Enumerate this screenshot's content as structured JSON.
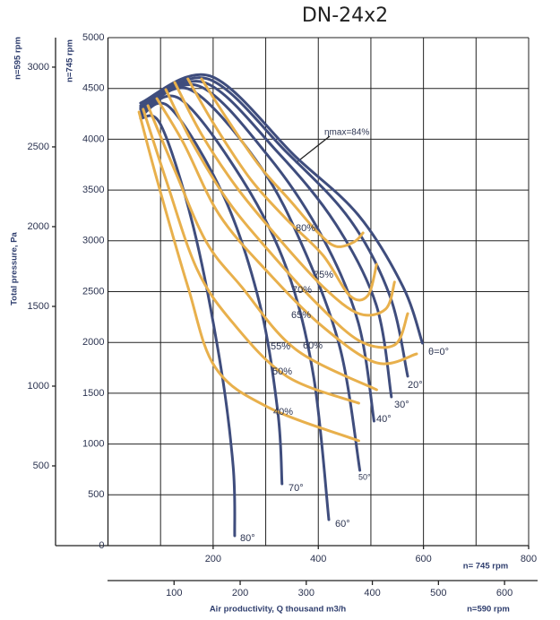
{
  "chart_data": {
    "type": "line",
    "title": "DN-24x2",
    "y_label": "Total pressure, Pa",
    "y_rpm_label": "n=745 rpm",
    "y2_rpm_label": "n=595 rpm",
    "x_label": "Air productivity, Q thousand m3/h",
    "x_rpm_label": "n= 745 rpm",
    "x2_rpm_label": "n=590 rpm",
    "annotation": "ηmax=84%",
    "xlim": [
      0,
      800
    ],
    "xticks": [
      200,
      400,
      600,
      800
    ],
    "xgrid": [
      100,
      200,
      300,
      400,
      500,
      600,
      700,
      800
    ],
    "ylim": [
      0,
      5000
    ],
    "yticks": [
      0,
      500,
      1000,
      1500,
      2000,
      2500,
      3000,
      3500,
      4000,
      4500,
      5000
    ],
    "y2lim": [
      0,
      3185
    ],
    "y2ticks": [
      500,
      1000,
      1500,
      2000,
      2500,
      3000
    ],
    "x2lim": [
      0,
      650
    ],
    "x2ticks": [
      100,
      200,
      300,
      400,
      500,
      600
    ],
    "grid": true,
    "series": [
      {
        "name": "θ=0°",
        "color": "#3f4d7d",
        "x": [
          62,
          195,
          357,
          476,
          561,
          598
        ],
        "values": [
          4356,
          4621,
          3827,
          3254,
          2549,
          1993
        ]
      },
      {
        "name": "20°",
        "color": "#3f4d7d",
        "x": [
          62,
          190,
          340,
          460,
          536,
          570
        ],
        "values": [
          4330,
          4594,
          3871,
          3210,
          2460,
          1667
        ]
      },
      {
        "name": "30°",
        "color": "#3f4d7d",
        "x": [
          62,
          183,
          323,
          433,
          510,
          539
        ],
        "values": [
          4312,
          4559,
          3871,
          3166,
          2372,
          1464
        ]
      },
      {
        "name": "40°",
        "color": "#3f4d7d",
        "x": [
          62,
          173,
          306,
          408,
          476,
          506
        ],
        "values": [
          4295,
          4524,
          3827,
          3034,
          2196,
          1226
        ]
      },
      {
        "name": "50°",
        "color": "#3f4d7d",
        "x": [
          62,
          156,
          289,
          374,
          442,
          479
        ],
        "values": [
          4268,
          4489,
          3739,
          2901,
          1931,
          741
        ]
      },
      {
        "name": "60°",
        "color": "#3f4d7d",
        "x": [
          62,
          136,
          255,
          340,
          391,
          420
        ],
        "values": [
          4242,
          4400,
          3607,
          2725,
          1667,
          256
        ]
      },
      {
        "name": "70°",
        "color": "#3f4d7d",
        "x": [
          62,
          118,
          221,
          289,
          323,
          331
        ],
        "values": [
          4224,
          4312,
          3430,
          2372,
          1314,
          608
        ]
      },
      {
        "name": "80°",
        "color": "#3f4d7d",
        "x": [
          62,
          101,
          161,
          212,
          238,
          241
        ],
        "values": [
          4206,
          4136,
          3166,
          1843,
          785,
          97
        ]
      },
      {
        "name": "40%",
        "color": "#e8b04c",
        "x": [
          59,
          93,
          152,
          204,
          306,
          477
        ],
        "values": [
          4268,
          3607,
          2548,
          1755,
          1358,
          1032
        ]
      },
      {
        "name": "50%",
        "color": "#e8b04c",
        "x": [
          67,
          110,
          169,
          237,
          340,
          477
        ],
        "values": [
          4295,
          3607,
          2725,
          2196,
          1667,
          1402
        ]
      },
      {
        "name": "55%",
        "color": "#e8b04c",
        "x": [
          76,
          127,
          187,
          254,
          357,
          511
        ],
        "values": [
          4330,
          3695,
          2989,
          2548,
          1932,
          1534
        ]
      },
      {
        "name": "60%",
        "color": "#e8b04c",
        "x": [
          93,
          144,
          212,
          306,
          409,
          511,
          587
        ],
        "values": [
          4400,
          3959,
          3254,
          2681,
          2152,
          1799,
          1887
        ]
      },
      {
        "name": "65%",
        "color": "#e8b04c",
        "x": [
          110,
          161,
          229,
          306,
          391,
          477,
          545,
          570
        ],
        "values": [
          4489,
          3959,
          3386,
          2901,
          2416,
          2019,
          1975,
          2284
        ]
      },
      {
        "name": "70%",
        "color": "#e8b04c",
        "x": [
          127,
          178,
          246,
          323,
          409,
          477,
          528,
          545
        ],
        "values": [
          4559,
          4048,
          3518,
          3034,
          2548,
          2284,
          2328,
          2594
        ]
      },
      {
        "name": "75%",
        "color": "#e8b04c",
        "x": [
          152,
          203,
          271,
          340,
          409,
          460,
          494,
          511
        ],
        "values": [
          4594,
          4136,
          3607,
          3210,
          2857,
          2460,
          2460,
          2769
        ]
      },
      {
        "name": "80%",
        "color": "#e8b04c",
        "x": [
          178,
          229,
          288,
          348,
          400,
          434,
          468,
          485
        ],
        "values": [
          4594,
          4180,
          3739,
          3386,
          3078,
          2945,
          2989,
          3078
        ]
      }
    ]
  }
}
